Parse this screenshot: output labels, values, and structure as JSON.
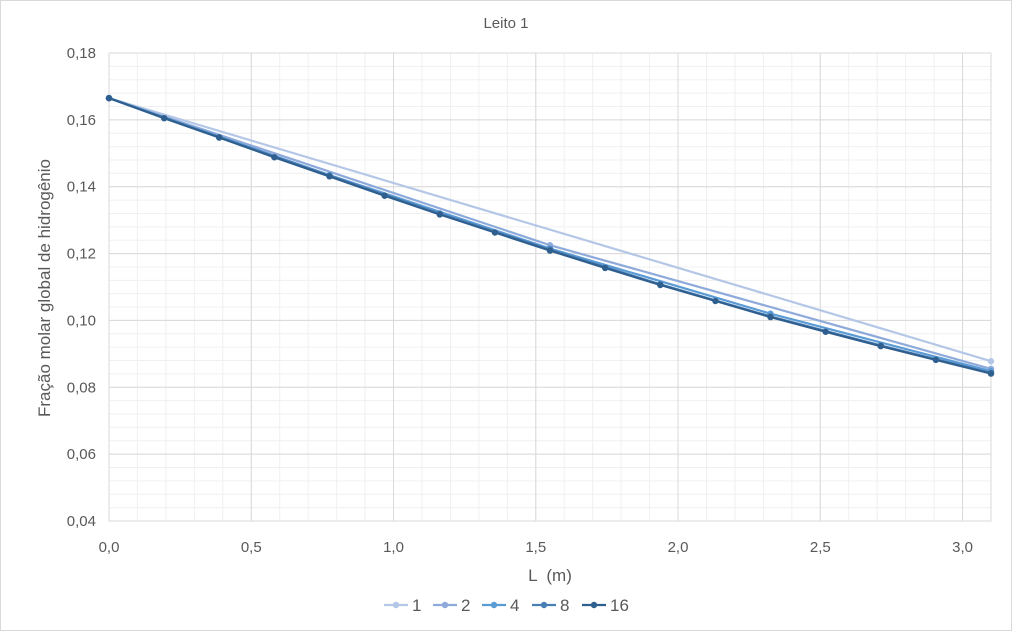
{
  "chart_data": {
    "type": "line",
    "title": "Leito 1",
    "xlabel": "L  (m)",
    "ylabel": "Fração molar global de hidrogênio",
    "xlim": [
      0,
      3.1
    ],
    "ylim": [
      0.04,
      0.18
    ],
    "x_ticks": [
      "0,0",
      "0,5",
      "1,0",
      "1,5",
      "2,0",
      "2,5",
      "3,0"
    ],
    "y_ticks": [
      "0,04",
      "0,06",
      "0,08",
      "0,10",
      "0,12",
      "0,14",
      "0,16",
      "0,18"
    ],
    "grid": true,
    "legend_position": "bottom",
    "series": [
      {
        "name": "1",
        "color": "#b4c7e7",
        "x": [
          0,
          3.1
        ],
        "y": [
          0.1665,
          0.0878
        ]
      },
      {
        "name": "2",
        "color": "#8eaadb",
        "x": [
          0,
          1.55,
          3.1
        ],
        "y": [
          0.1665,
          0.1225,
          0.0855
        ]
      },
      {
        "name": "4",
        "color": "#5b9bd5",
        "x": [
          0,
          0.775,
          1.55,
          2.325,
          3.1
        ],
        "y": [
          0.1665,
          0.1435,
          0.1215,
          0.102,
          0.0848
        ]
      },
      {
        "name": "8",
        "color": "#4a7fb5",
        "x": [
          0,
          0.3875,
          0.775,
          1.1625,
          1.55,
          1.9375,
          2.325,
          2.7125,
          3.1
        ],
        "y": [
          0.1665,
          0.1548,
          0.1433,
          0.132,
          0.1212,
          0.1108,
          0.1012,
          0.0925,
          0.0843
        ]
      },
      {
        "name": "16",
        "color": "#2f5f8f",
        "x": [
          0,
          0.19375,
          0.3875,
          0.58125,
          0.775,
          0.96875,
          1.1625,
          1.35625,
          1.55,
          1.74375,
          1.9375,
          2.13125,
          2.325,
          2.51875,
          2.7125,
          2.90625,
          3.1
        ],
        "y": [
          0.1665,
          0.1605,
          0.1547,
          0.1488,
          0.1431,
          0.1373,
          0.1317,
          0.1263,
          0.1209,
          0.1157,
          0.1106,
          0.1058,
          0.101,
          0.0966,
          0.0923,
          0.0882,
          0.0841
        ]
      }
    ]
  }
}
